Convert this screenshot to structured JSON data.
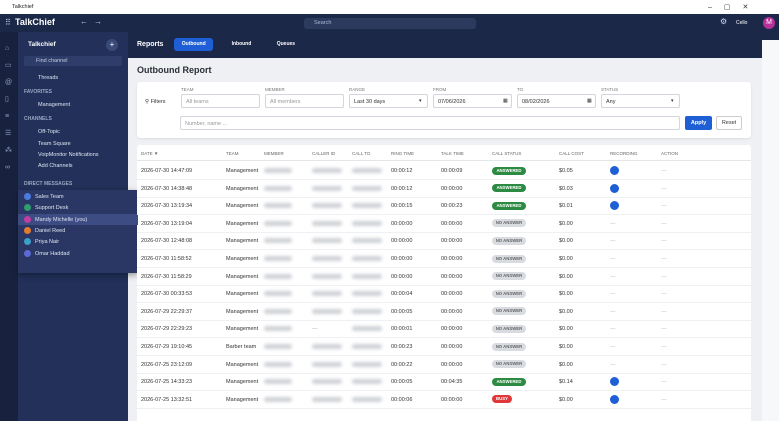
{
  "window": {
    "title": "Talkchief"
  },
  "header": {
    "logo": "TalkChief",
    "search": "Search",
    "user": "Cello",
    "avatar": "M"
  },
  "sidebar": {
    "workspace": "Talkchief",
    "search": "Find channel",
    "threads": "Threads",
    "favorites": {
      "title": "FAVORITES",
      "items": [
        "Management"
      ]
    },
    "channels": {
      "title": "CHANNELS",
      "items": [
        "Off-Topic",
        "Team Square",
        "VoipMonitor Notifications",
        "Add Channels"
      ]
    },
    "direct": {
      "title": "DIRECT MESSAGES",
      "items": [
        {
          "name": "Sales Team",
          "color": "#4c7be0"
        },
        {
          "name": "Support Desk",
          "color": "#2f9e6e"
        },
        {
          "name": "Mandy Michelle (you)",
          "color": "#c13fa0"
        },
        {
          "name": "Daniel Reed",
          "color": "#e07b2f"
        },
        {
          "name": "Priya Nair",
          "color": "#3aa0c8"
        },
        {
          "name": "Omar Haddad",
          "color": "#5b6bd6"
        }
      ]
    }
  },
  "nav": {
    "title": "Reports",
    "tabs": [
      "Outbound",
      "Inbound",
      "Queues"
    ],
    "active": 0
  },
  "report": {
    "title": "Outbound Report",
    "filters": {
      "label": "Filters",
      "fields": [
        {
          "label": "TEAM",
          "value": "All teams"
        },
        {
          "label": "MEMBER",
          "value": "All members"
        },
        {
          "label": "RANGE",
          "value": "Last 30 days"
        },
        {
          "label": "FROM",
          "value": "07/06/2026"
        },
        {
          "label": "TO",
          "value": "08/02/2026"
        },
        {
          "label": "STATUS",
          "value": "Any"
        }
      ],
      "search": "Number, name ...",
      "apply": "Apply",
      "reset": "Reset"
    },
    "table": {
      "columns": [
        "DATE ▼",
        "TEAM",
        "MEMBER",
        "CALLER ID",
        "CALL TO",
        "RING TIME",
        "TALK TIME",
        "CALL STATUS",
        "CALL COST",
        "RECORDING",
        "ACTION"
      ],
      "status_colors": {
        "ANSWERED": "#2c8a43",
        "NO ANSWER": "#d8dbe0",
        "BUSY": "#e0383a"
      },
      "rows": [
        {
          "date": "2026-07-30 14:47:09",
          "team": "Management",
          "caller_id": null,
          "ring_time": "00:00:12",
          "talk_time": "00:00:09",
          "status": "ANSWERED",
          "cost": "$0.05",
          "recording": true,
          "action": "---"
        },
        {
          "date": "2026-07-30 14:38:48",
          "team": "Management",
          "caller_id": null,
          "ring_time": "00:00:12",
          "talk_time": "00:00:00",
          "status": "ANSWERED",
          "cost": "$0.03",
          "recording": true,
          "action": "---"
        },
        {
          "date": "2026-07-30 13:19:34",
          "team": "Management",
          "caller_id": null,
          "ring_time": "00:00:15",
          "talk_time": "00:00:23",
          "status": "ANSWERED",
          "cost": "$0.01",
          "recording": true,
          "action": "---"
        },
        {
          "date": "2026-07-30 13:19:04",
          "team": "Management",
          "caller_id": null,
          "ring_time": "00:00:00",
          "talk_time": "00:00:00",
          "status": "NO ANSWER",
          "cost": "$0.00",
          "recording": "---",
          "action": "---"
        },
        {
          "date": "2026-07-30 12:48:08",
          "team": "Management",
          "caller_id": null,
          "ring_time": "00:00:00",
          "talk_time": "00:00:00",
          "status": "NO ANSWER",
          "cost": "$0.00",
          "recording": "---",
          "action": "---"
        },
        {
          "date": "2026-07-30 11:58:52",
          "team": "Management",
          "caller_id": null,
          "ring_time": "00:00:00",
          "talk_time": "00:00:00",
          "status": "NO ANSWER",
          "cost": "$0.00",
          "recording": "---",
          "action": "---"
        },
        {
          "date": "2026-07-30 11:58:29",
          "team": "Management",
          "caller_id": null,
          "ring_time": "00:00:00",
          "talk_time": "00:00:00",
          "status": "NO ANSWER",
          "cost": "$0.00",
          "recording": "---",
          "action": "---"
        },
        {
          "date": "2026-07-30 00:33:53",
          "team": "Management",
          "caller_id": null,
          "ring_time": "00:00:04",
          "talk_time": "00:00:00",
          "status": "NO ANSWER",
          "cost": "$0.00",
          "recording": "---",
          "action": "---"
        },
        {
          "date": "2026-07-29 22:29:37",
          "team": "Management",
          "caller_id": null,
          "ring_time": "00:00:05",
          "talk_time": "00:00:00",
          "status": "NO ANSWER",
          "cost": "$0.00",
          "recording": "---",
          "action": "---"
        },
        {
          "date": "2026-07-29 22:29:23",
          "team": "Management",
          "caller_id": "---",
          "ring_time": "00:00:01",
          "talk_time": "00:00:00",
          "status": "NO ANSWER",
          "cost": "$0.00",
          "recording": "---",
          "action": "---"
        },
        {
          "date": "2026-07-29 19:10:45",
          "team": "Barber team",
          "caller_id": null,
          "ring_time": "00:00:23",
          "talk_time": "00:00:00",
          "status": "NO ANSWER",
          "cost": "$0.00",
          "recording": "---",
          "action": "---"
        },
        {
          "date": "2026-07-25 23:12:09",
          "team": "Management",
          "caller_id": null,
          "ring_time": "00:00:22",
          "talk_time": "00:00:00",
          "status": "NO ANSWER",
          "cost": "$0.00",
          "recording": "---",
          "action": "---"
        },
        {
          "date": "2026-07-25 14:33:23",
          "team": "Management",
          "caller_id": null,
          "ring_time": "00:00:05",
          "talk_time": "00:04:35",
          "status": "ANSWERED",
          "cost": "$0.14",
          "recording": true,
          "action": "---"
        },
        {
          "date": "2026-07-25 13:32:51",
          "team": "Management",
          "caller_id": null,
          "ring_time": "00:00:06",
          "talk_time": "00:00:00",
          "status": "BUSY",
          "cost": "$0.00",
          "recording": true,
          "action": "---"
        }
      ]
    }
  }
}
